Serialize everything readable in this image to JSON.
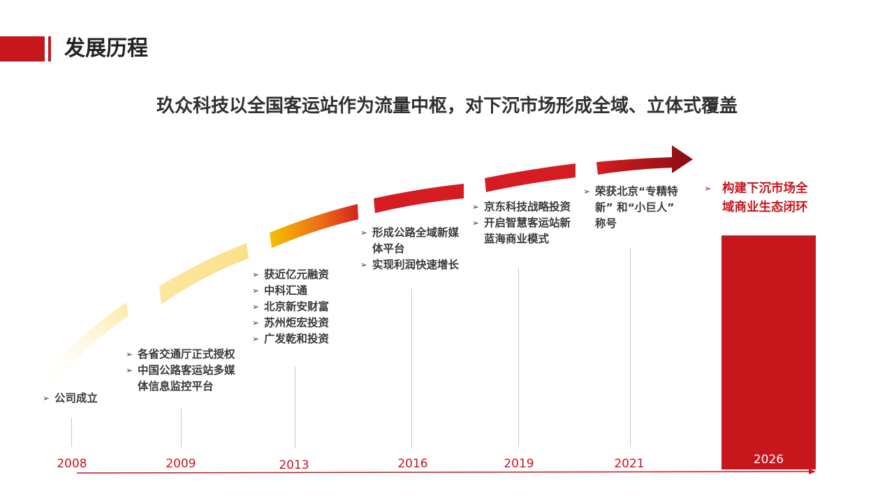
{
  "header": {
    "title": "发展历程"
  },
  "subtitle": "玖众科技以全国客运站作为流量中枢，对下沉市场形成全域、立体式覆盖",
  "bullet_marker": "➢",
  "colors": {
    "accent": "#c8161d",
    "gold": "#f5c518",
    "pale_gold": "#fbe89a",
    "dark_red": "#8b0d12"
  },
  "milestones": [
    {
      "year": "2008",
      "items": [
        "公司成立"
      ]
    },
    {
      "year": "2009",
      "items": [
        "各省交通厅正式授权",
        "中国公路客运站多媒",
        "体信息监控平台"
      ]
    },
    {
      "year": "2013",
      "items": [
        "获近亿元融资",
        "中科汇通",
        "北京新安财富",
        "苏州炬宏投资",
        "广发乾和投资"
      ]
    },
    {
      "year": "2016",
      "items": [
        "形成公路全域新媒",
        "体平台",
        "实现利润快速增长"
      ]
    },
    {
      "year": "2019",
      "items": [
        "京东科技战略投资",
        "开启智慧客运站新",
        "蓝海商业模式"
      ]
    },
    {
      "year": "2021",
      "items": [
        "荣获北京“专精特",
        "新” 和“小巨人”",
        "称号"
      ]
    },
    {
      "year": "2026",
      "items": [
        "构建下沉市场全",
        "域商业生态闭环"
      ]
    }
  ]
}
